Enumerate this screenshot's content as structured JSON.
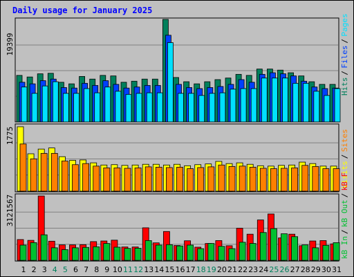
{
  "title": "Daily usage for January 2025",
  "colors": {
    "hits": "#00805c",
    "files": "#0040ff",
    "pages": "#00e0ff",
    "visits": "#ffff00",
    "sites": "#ff8000",
    "kbout": "#ff8000",
    "kbin": "#00c030",
    "kbf": "#ff0000",
    "weekday": "#000000",
    "weekend": "#00805c"
  },
  "legend": {
    "top": [
      {
        "text": "Hits",
        "color": "#00805c"
      },
      {
        "text": "Files",
        "color": "#0040ff"
      },
      {
        "text": "Pages",
        "color": "#00e0ff"
      }
    ],
    "mid": [
      {
        "text": "Visits",
        "color": "#ffff00"
      },
      {
        "text": "Sites",
        "color": "#ff8000"
      }
    ],
    "bot": [
      {
        "text": "kB In",
        "color": "#00c030"
      },
      {
        "text": "kB Out",
        "color": "#00c030"
      },
      {
        "text": "kB F",
        "color": "#ff0000"
      }
    ]
  },
  "chart_data": {
    "type": "bar",
    "title": "Daily usage for January 2025",
    "categories": [
      "1",
      "2",
      "3",
      "4",
      "5",
      "6",
      "7",
      "8",
      "9",
      "10",
      "11",
      "12",
      "13",
      "14",
      "15",
      "16",
      "17",
      "18",
      "19",
      "20",
      "21",
      "22",
      "23",
      "24",
      "25",
      "26",
      "27",
      "28",
      "29",
      "30",
      "31"
    ],
    "weekend_days": [
      4,
      5,
      11,
      12,
      18,
      19,
      25,
      26
    ],
    "panels": [
      {
        "name": "hits-files-pages",
        "ymax_label": "19399",
        "ymax": 19399,
        "series": [
          {
            "name": "Hits",
            "values": [
              8800,
              8500,
              9100,
              9200,
              7500,
              7200,
              8600,
              8100,
              8800,
              8700,
              7500,
              7700,
              8100,
              8100,
              19399,
              8400,
              7600,
              7200,
              7600,
              8000,
              8300,
              9000,
              8800,
              10000,
              10000,
              9800,
              9300,
              8700,
              7600,
              7100,
              7100
            ]
          },
          {
            "name": "Files",
            "values": [
              7500,
              7200,
              7800,
              8100,
              6500,
              6400,
              7300,
              6900,
              7800,
              7100,
              6400,
              6600,
              6900,
              6900,
              16400,
              7100,
              6500,
              6300,
              6500,
              6700,
              7100,
              8000,
              7500,
              9000,
              9300,
              9100,
              8700,
              7700,
              6600,
              6300,
              6400
            ]
          },
          {
            "name": "Pages",
            "values": [
              6600,
              5400,
              6800,
              7600,
              5400,
              5400,
              6300,
              5500,
              6600,
              5800,
              5200,
              5400,
              5500,
              5500,
              15000,
              5400,
              5400,
              5000,
              5400,
              5500,
              6200,
              6300,
              6300,
              8300,
              8300,
              8300,
              7300,
              7300,
              5800,
              5000,
              6300
            ]
          }
        ]
      },
      {
        "name": "visits-sites",
        "ymax_label": "1775",
        "ymax": 1775,
        "series": [
          {
            "name": "Visits",
            "values": [
              1775,
              1030,
              1160,
              1190,
              950,
              850,
              860,
              780,
              720,
              730,
              710,
              720,
              740,
              740,
              720,
              740,
              700,
              730,
              750,
              820,
              760,
              780,
              740,
              700,
              690,
              710,
              720,
              800,
              760,
              690,
              690
            ]
          },
          {
            "name": "Sites",
            "values": [
              1300,
              890,
              1040,
              1040,
              830,
              730,
              760,
              690,
              640,
              640,
              630,
              640,
              670,
              660,
              650,
              660,
              620,
              650,
              670,
              720,
              680,
              690,
              660,
              630,
              620,
              630,
              640,
              710,
              680,
              620,
              620
            ]
          }
        ]
      },
      {
        "name": "kbytes",
        "ymax_label": "3121567",
        "ymax": 3121567,
        "series": [
          {
            "name": "kB F",
            "values": [
              1010000,
              970000,
              3121567,
              930000,
              750000,
              750000,
              760000,
              910000,
              940000,
              980000,
              650000,
              650000,
              1580000,
              850000,
              1400000,
              720000,
              950000,
              640000,
              820000,
              960000,
              710000,
              1560000,
              1270000,
              1960000,
              2250000,
              1090000,
              1270000,
              710000,
              940000,
              960000,
              800000
            ]
          },
          {
            "name": "kB In",
            "values": [
              740000,
              860000,
              1240000,
              610000,
              520000,
              610000,
              630000,
              660000,
              820000,
              640000,
              580000,
              590000,
              960000,
              740000,
              760000,
              700000,
              740000,
              570000,
              820000,
              680000,
              570000,
              880000,
              820000,
              1350000,
              1540000,
              1290000,
              1150000,
              750000,
              610000,
              730000,
              860000
            ]
          }
        ]
      }
    ]
  }
}
